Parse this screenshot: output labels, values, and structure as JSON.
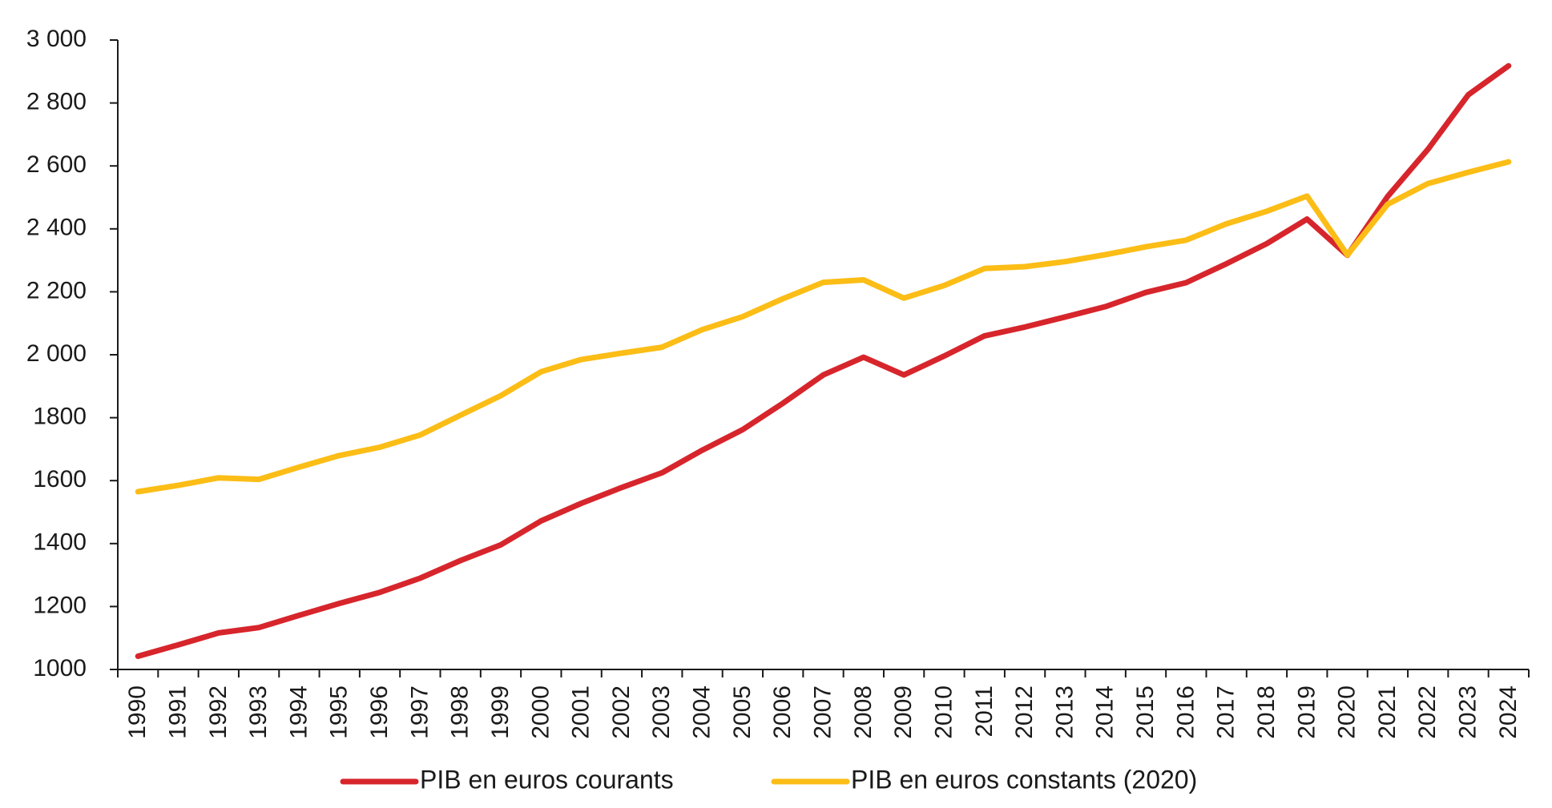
{
  "chart_data": {
    "type": "line",
    "title": "",
    "xlabel": "",
    "ylabel": "",
    "ylim": [
      1000,
      3000
    ],
    "y_ticks": [
      1000,
      1200,
      1400,
      1600,
      1800,
      2000,
      2200,
      2400,
      2600,
      2800,
      3000
    ],
    "y_tick_labels": [
      "1000",
      "1200",
      "1400",
      "1600",
      "1800",
      "2 000",
      "2 200",
      "2 400",
      "2 600",
      "2 800",
      "3 000"
    ],
    "categories": [
      "1990",
      "1991",
      "1992",
      "1993",
      "1994",
      "1995",
      "1996",
      "1997",
      "1998",
      "1999",
      "2000",
      "2001",
      "2002",
      "2003",
      "2004",
      "2005",
      "2006",
      "2007",
      "2008",
      "2009",
      "2010",
      "2011",
      "2012",
      "2013",
      "2014",
      "2015",
      "2016",
      "2017",
      "2018",
      "2019",
      "2020",
      "2021",
      "2022",
      "2023",
      "2024"
    ],
    "grid": false,
    "legend_position": "bottom",
    "series": [
      {
        "name": "PIB en euros courants",
        "color": "#d7252c",
        "values": [
          1042,
          1078,
          1116,
          1133,
          1172,
          1210,
          1245,
          1290,
          1346,
          1396,
          1472,
          1528,
          1578,
          1625,
          1697,
          1762,
          1846,
          1936,
          1992,
          1936,
          1996,
          2060,
          2088,
          2120,
          2153,
          2198,
          2229,
          2289,
          2353,
          2431,
          2316,
          2503,
          2653,
          2826,
          2918
        ]
      },
      {
        "name": "PIB en euros constants (2020)",
        "color": "#fbbd16",
        "values": [
          1565,
          1585,
          1609,
          1604,
          1643,
          1680,
          1706,
          1745,
          1808,
          1870,
          1946,
          1985,
          2005,
          2024,
          2080,
          2121,
          2178,
          2230,
          2238,
          2180,
          2220,
          2274,
          2280,
          2296,
          2318,
          2343,
          2364,
          2416,
          2456,
          2504,
          2317,
          2478,
          2544,
          2580,
          2613
        ]
      }
    ]
  }
}
